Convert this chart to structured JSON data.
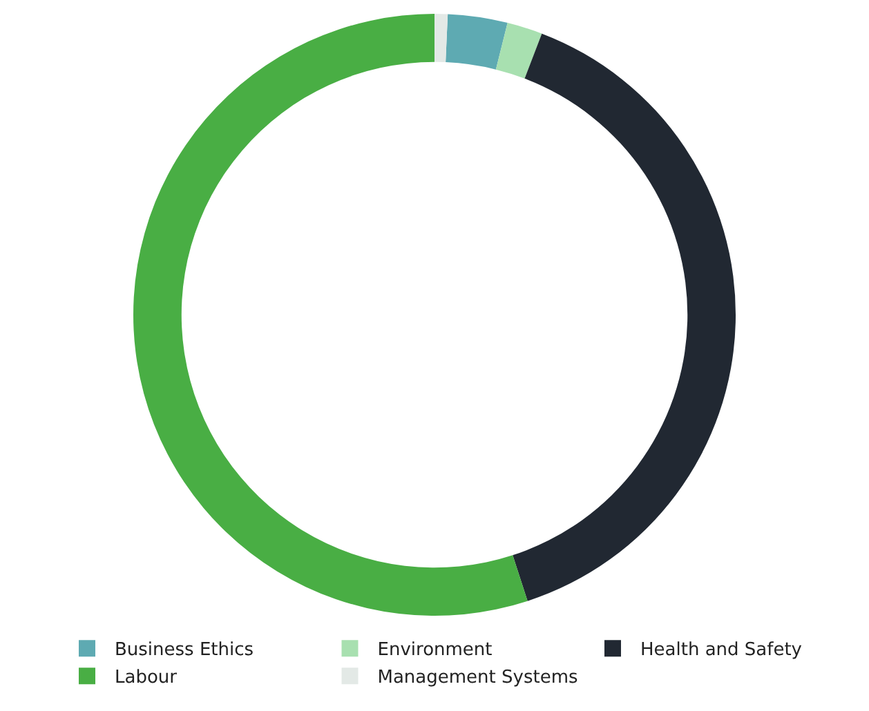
{
  "chart_data": {
    "type": "donut",
    "categories": [
      "Business Ethics",
      "Environment",
      "Health and Safety",
      "Labour",
      "Management Systems"
    ],
    "values": [
      3.2,
      1.9,
      39.2,
      55,
      0.7
    ],
    "colors": [
      "#5eaab2",
      "#a8e0b0",
      "#212832",
      "#49ae44",
      "#e3e9e6"
    ],
    "legend": "bottom"
  }
}
